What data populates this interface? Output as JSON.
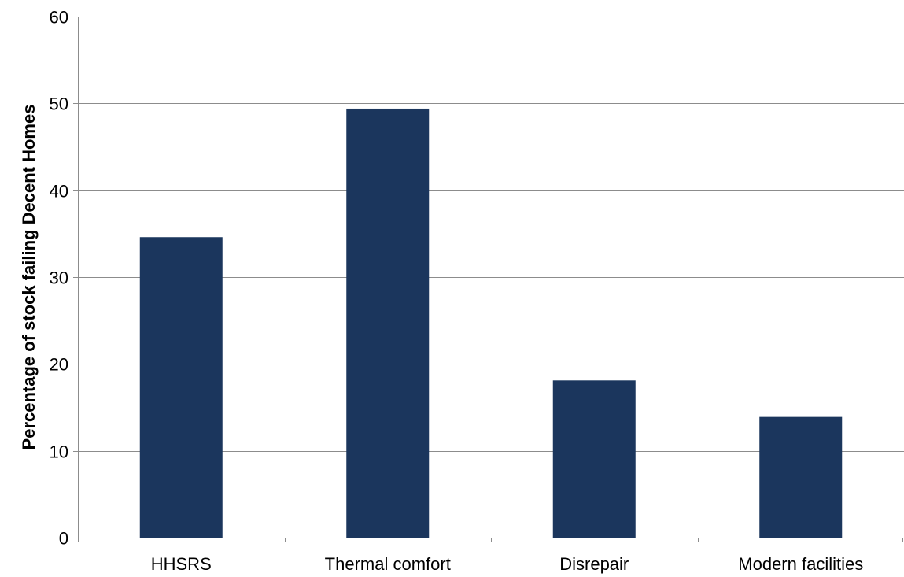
{
  "chart_data": {
    "type": "bar",
    "title": "",
    "xlabel": "",
    "ylabel": "Percentage of stock failing Decent Homes",
    "categories": [
      "HHSRS",
      "Thermal comfort",
      "Disrepair",
      "Modern facilities"
    ],
    "values": [
      34.6,
      49.4,
      18.1,
      13.9
    ],
    "ylim": [
      0,
      60
    ],
    "yticks": [
      0,
      10,
      20,
      30,
      40,
      50,
      60
    ],
    "grid": true,
    "legend": "none",
    "bar_color": "#1b365d"
  }
}
